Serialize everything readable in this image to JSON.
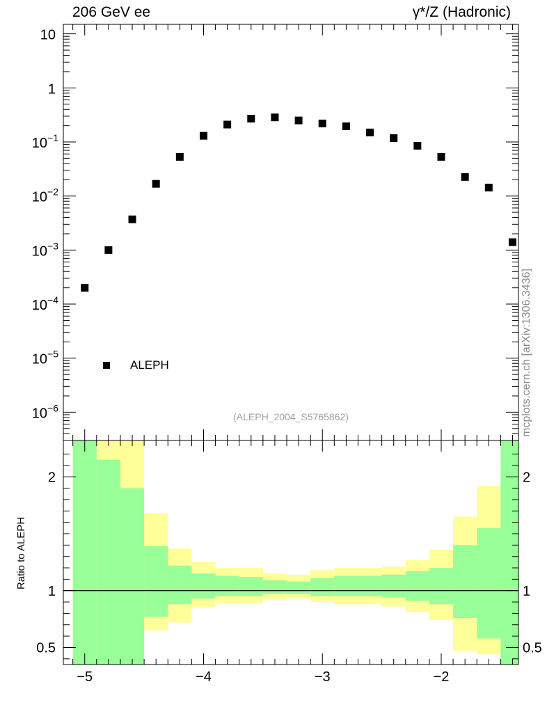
{
  "header": {
    "left": "206 GeV ee",
    "right": "γ*/Z (Hadronic)"
  },
  "side_note": "mcplots.cern.ch [arXiv:1306.3436]",
  "watermark": "(ALEPH_2004_S5765862)",
  "chart_data": [
    {
      "type": "scatter",
      "panel": "main",
      "yscale": "log",
      "ylim": [
        3e-07,
        15
      ],
      "xlim": [
        -5.18,
        -1.35
      ],
      "y_tick_labels": [
        "10",
        "1",
        "10-1",
        "10-2",
        "10-3",
        "10-4",
        "10-5",
        "10-6"
      ],
      "legend": {
        "entries": [
          "ALEPH"
        ],
        "placement": "bottom-left"
      },
      "series": [
        {
          "name": "ALEPH",
          "color": "#000000",
          "x": [
            -5.0,
            -4.8,
            -4.6,
            -4.4,
            -4.2,
            -4.0,
            -3.8,
            -3.6,
            -3.4,
            -3.2,
            -3.0,
            -2.8,
            -2.6,
            -2.4,
            -2.2,
            -2.0,
            -1.8,
            -1.6,
            -1.4
          ],
          "y": [
            0.0002,
            0.001,
            0.0037,
            0.0168,
            0.053,
            0.13,
            0.21,
            0.27,
            0.285,
            0.25,
            0.22,
            0.195,
            0.15,
            0.118,
            0.085,
            0.053,
            0.0225,
            0.0143,
            0.0014
          ]
        }
      ]
    },
    {
      "type": "area",
      "panel": "ratio",
      "ylabel": "Ratio to ALEPH",
      "ylim": [
        0.35,
        2.32
      ],
      "xlim": [
        -5.18,
        -1.35
      ],
      "x_tick_labels": [
        "−5",
        "−4",
        "−3",
        "−2"
      ],
      "y_tick_labels": [
        "0.5",
        "1",
        "2"
      ],
      "reference_line": 1,
      "bin_edges": [
        -5.1,
        -4.9,
        -4.7,
        -4.5,
        -4.3,
        -4.1,
        -3.9,
        -3.7,
        -3.5,
        -3.3,
        -3.1,
        -2.9,
        -2.7,
        -2.5,
        -2.3,
        -2.1,
        -1.9,
        -1.7,
        -1.5,
        -1.3
      ],
      "bands": [
        {
          "color": "#ffff99",
          "upper": [
            2.5,
            2.32,
            2.32,
            1.68,
            1.37,
            1.25,
            1.2,
            1.2,
            1.15,
            1.14,
            1.18,
            1.2,
            1.2,
            1.21,
            1.27,
            1.36,
            1.65,
            1.92,
            2.5
          ],
          "lower": [
            0.3,
            0.3,
            0.3,
            0.65,
            0.72,
            0.85,
            0.89,
            0.89,
            0.92,
            0.93,
            0.9,
            0.88,
            0.88,
            0.86,
            0.81,
            0.74,
            0.47,
            0.44,
            0.3
          ]
        },
        {
          "color": "#99ff99",
          "upper": [
            2.5,
            2.15,
            1.9,
            1.39,
            1.22,
            1.15,
            1.13,
            1.12,
            1.09,
            1.08,
            1.11,
            1.13,
            1.13,
            1.14,
            1.17,
            1.2,
            1.4,
            1.55,
            2.5
          ],
          "lower": [
            0.3,
            0.3,
            0.3,
            0.77,
            0.88,
            0.93,
            0.95,
            0.95,
            0.97,
            0.97,
            0.95,
            0.95,
            0.95,
            0.94,
            0.91,
            0.88,
            0.76,
            0.58,
            0.3
          ]
        }
      ]
    }
  ]
}
